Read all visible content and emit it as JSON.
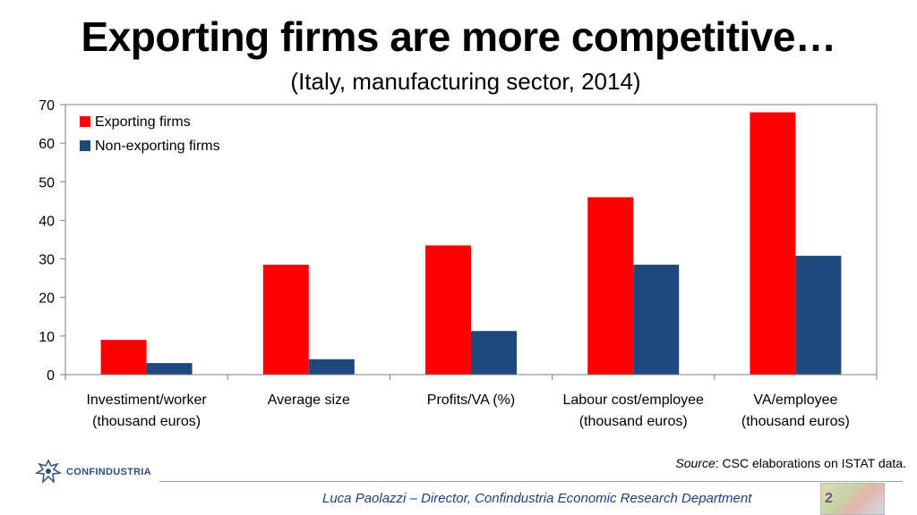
{
  "slide": {
    "title": "Exporting firms are more competitive…",
    "subtitle": "(Italy, manufacturing sector, 2014)",
    "source_label": "Source",
    "source_text": ":  CSC elaborations on ISTAT data.",
    "logo_text": "CONFINDUSTRIA",
    "footer": "Luca Paolazzi – Director, Confindustria Economic Research Department",
    "footer_thumb_digit": "2"
  },
  "colors": {
    "exporting": "#ff0000",
    "non_exporting": "#1f497d"
  },
  "chart_data": {
    "type": "bar",
    "categories": [
      [
        "Investiment/worker",
        "(thousand euros)"
      ],
      [
        "Average size"
      ],
      [
        "Profits/VA (%)"
      ],
      [
        "Labour cost/employee",
        "(thousand euros)"
      ],
      [
        "VA/employee",
        "(thousand euros)"
      ]
    ],
    "series": [
      {
        "name": "Exporting firms",
        "values": [
          9,
          28.5,
          33.5,
          46,
          68
        ]
      },
      {
        "name": "Non-exporting firms",
        "values": [
          3,
          4,
          11.3,
          28.5,
          30.8
        ]
      }
    ],
    "ylim": [
      0,
      70
    ],
    "yticks": [
      0,
      10,
      20,
      30,
      40,
      50,
      60,
      70
    ],
    "legend_position": "top-left",
    "grid": false
  }
}
